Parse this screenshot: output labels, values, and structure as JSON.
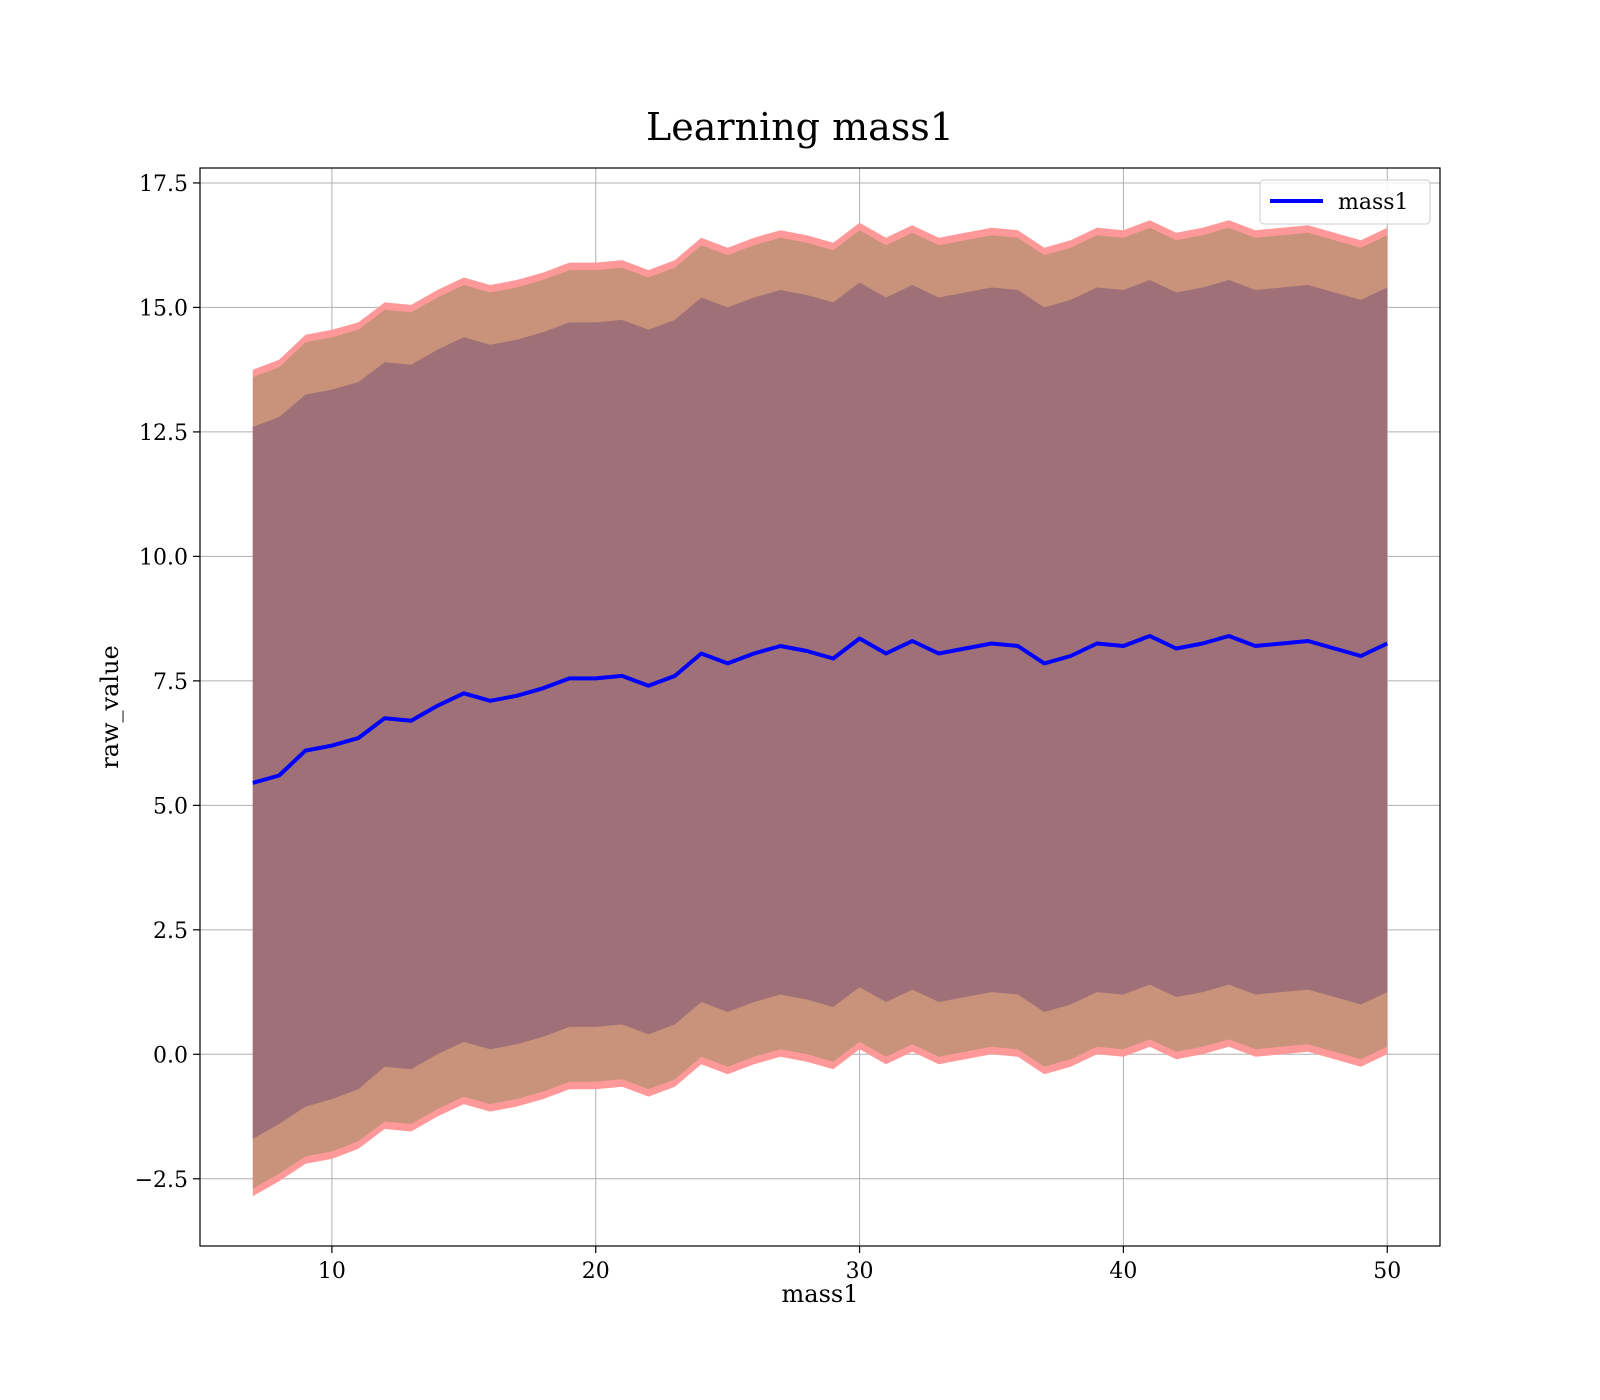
{
  "chart_data": {
    "type": "line",
    "title": "Learning mass1",
    "xlabel": "mass1",
    "ylabel": "raw_value",
    "xlim": [
      5,
      52
    ],
    "ylim": [
      -3.85,
      17.8
    ],
    "xticks": [
      10,
      20,
      30,
      40,
      50
    ],
    "xtick_labels": [
      "10",
      "20",
      "30",
      "40",
      "50"
    ],
    "yticks": [
      -2.5,
      0.0,
      2.5,
      5.0,
      7.5,
      10.0,
      12.5,
      15.0,
      17.5
    ],
    "ytick_labels": [
      "−2.5",
      "0.0",
      "2.5",
      "5.0",
      "7.5",
      "10.0",
      "12.5",
      "15.0",
      "17.5"
    ],
    "grid": true,
    "legend": {
      "position": "top-right",
      "entries": [
        "mass1"
      ]
    },
    "colors": {
      "line": "#0000ff",
      "outer_band": "#ff9999",
      "mid_band": "#c8937a",
      "inner_band": "#a07078"
    },
    "x": [
      7,
      8,
      9,
      10,
      11,
      12,
      13,
      14,
      15,
      16,
      17,
      18,
      19,
      20,
      21,
      22,
      23,
      24,
      25,
      26,
      27,
      28,
      29,
      30,
      31,
      32,
      33,
      34,
      35,
      36,
      37,
      38,
      39,
      40,
      41,
      42,
      43,
      44,
      45,
      46,
      47,
      48,
      49,
      50
    ],
    "series": [
      {
        "name": "mass1",
        "mean": [
          5.45,
          5.6,
          6.1,
          6.2,
          6.35,
          6.75,
          6.7,
          7.0,
          7.25,
          7.1,
          7.2,
          7.35,
          7.55,
          7.55,
          7.6,
          7.4,
          7.6,
          8.05,
          7.85,
          8.05,
          8.2,
          8.1,
          7.95,
          8.35,
          8.05,
          8.3,
          8.05,
          8.15,
          8.25,
          8.2,
          7.85,
          8.0,
          8.25,
          8.2,
          8.4,
          8.15,
          8.25,
          8.4,
          8.2,
          8.25,
          8.3,
          8.15,
          8.0,
          8.25
        ],
        "lower_1": [
          -1.7,
          -1.4,
          -1.05,
          -0.9,
          -0.7,
          -0.25,
          -0.3,
          0.0,
          0.25,
          0.1,
          0.2,
          0.35,
          0.55,
          0.55,
          0.6,
          0.4,
          0.6,
          1.05,
          0.85,
          1.05,
          1.2,
          1.1,
          0.95,
          1.35,
          1.05,
          1.3,
          1.05,
          1.15,
          1.25,
          1.2,
          0.85,
          1.0,
          1.25,
          1.2,
          1.4,
          1.15,
          1.25,
          1.4,
          1.2,
          1.25,
          1.3,
          1.15,
          1.0,
          1.25
        ],
        "upper_1": [
          12.6,
          12.8,
          13.25,
          13.35,
          13.5,
          13.9,
          13.85,
          14.15,
          14.4,
          14.25,
          14.35,
          14.5,
          14.7,
          14.7,
          14.75,
          14.55,
          14.75,
          15.2,
          15.0,
          15.2,
          15.35,
          15.25,
          15.1,
          15.5,
          15.2,
          15.45,
          15.2,
          15.3,
          15.4,
          15.35,
          15.0,
          15.15,
          15.4,
          15.35,
          15.55,
          15.3,
          15.4,
          15.55,
          15.35,
          15.4,
          15.45,
          15.3,
          15.15,
          15.4
        ],
        "lower_2": [
          -2.7,
          -2.4,
          -2.05,
          -1.95,
          -1.75,
          -1.35,
          -1.4,
          -1.1,
          -0.85,
          -1.0,
          -0.9,
          -0.75,
          -0.55,
          -0.55,
          -0.5,
          -0.7,
          -0.5,
          -0.05,
          -0.25,
          -0.05,
          0.1,
          0.0,
          -0.15,
          0.25,
          -0.05,
          0.2,
          -0.05,
          0.05,
          0.15,
          0.1,
          -0.25,
          -0.1,
          0.15,
          0.1,
          0.3,
          0.05,
          0.15,
          0.3,
          0.1,
          0.15,
          0.2,
          0.05,
          -0.1,
          0.15
        ],
        "upper_2": [
          13.6,
          13.8,
          14.3,
          14.4,
          14.55,
          14.95,
          14.9,
          15.2,
          15.45,
          15.3,
          15.4,
          15.55,
          15.75,
          15.75,
          15.8,
          15.6,
          15.8,
          16.25,
          16.05,
          16.25,
          16.4,
          16.3,
          16.15,
          16.55,
          16.25,
          16.5,
          16.25,
          16.35,
          16.45,
          16.4,
          16.05,
          16.2,
          16.45,
          16.4,
          16.6,
          16.35,
          16.45,
          16.6,
          16.4,
          16.45,
          16.5,
          16.35,
          16.2,
          16.45
        ],
        "lower_3": [
          -2.85,
          -2.55,
          -2.2,
          -2.1,
          -1.9,
          -1.5,
          -1.55,
          -1.25,
          -1.0,
          -1.15,
          -1.05,
          -0.9,
          -0.7,
          -0.7,
          -0.65,
          -0.85,
          -0.65,
          -0.2,
          -0.4,
          -0.2,
          -0.05,
          -0.15,
          -0.3,
          0.1,
          -0.2,
          0.05,
          -0.2,
          -0.1,
          0.0,
          -0.05,
          -0.4,
          -0.25,
          0.0,
          -0.05,
          0.15,
          -0.1,
          0.0,
          0.15,
          -0.05,
          0.0,
          0.05,
          -0.1,
          -0.25,
          0.0
        ],
        "upper_3": [
          13.75,
          13.95,
          14.45,
          14.55,
          14.7,
          15.1,
          15.05,
          15.35,
          15.6,
          15.45,
          15.55,
          15.7,
          15.9,
          15.9,
          15.95,
          15.75,
          15.95,
          16.4,
          16.2,
          16.4,
          16.55,
          16.45,
          16.3,
          16.7,
          16.4,
          16.65,
          16.4,
          16.5,
          16.6,
          16.55,
          16.2,
          16.35,
          16.6,
          16.55,
          16.75,
          16.5,
          16.6,
          16.75,
          16.55,
          16.6,
          16.65,
          16.5,
          16.35,
          16.6
        ]
      }
    ]
  }
}
